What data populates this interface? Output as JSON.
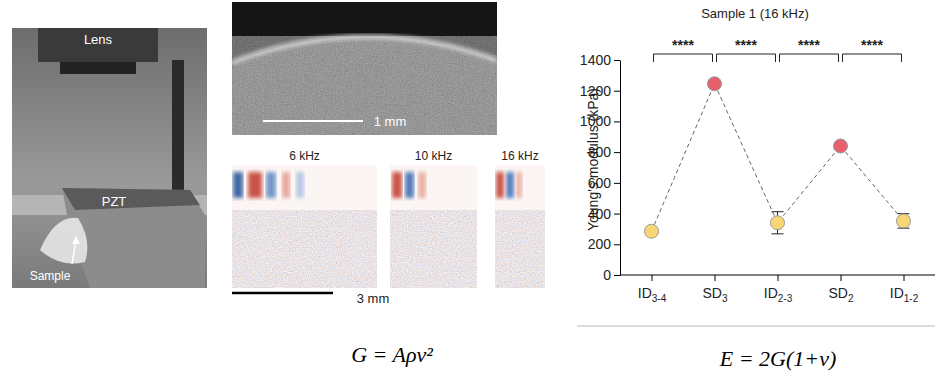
{
  "chart_data": {
    "type": "line",
    "title": "Sample 1 (16 kHz)",
    "y_label": "Young's modulus (kPa)",
    "categories": [
      "ID3-4",
      "SD3",
      "ID2-3",
      "SD2",
      "ID1-2"
    ],
    "values": [
      285,
      1245,
      340,
      840,
      352
    ],
    "errors": [
      20,
      20,
      72,
      12,
      47
    ],
    "colors": [
      "#f7d774",
      "#e8606e",
      "#f7d774",
      "#e8606e",
      "#f7d774"
    ],
    "marker": "circle",
    "line_style": "dashed",
    "ylim": [
      0,
      1400
    ],
    "yticks": [
      0,
      200,
      400,
      600,
      800,
      1000,
      1200,
      1400
    ],
    "annotations": [
      "****",
      "****",
      "****",
      "****"
    ]
  },
  "photo": {
    "labels": [
      "Lens",
      "PZT",
      "Sample"
    ]
  },
  "oct": {
    "scale_bar": "1 mm"
  },
  "waves": {
    "labels": [
      "6 kHz",
      "10 kHz",
      "16 kHz"
    ],
    "scale_bar": "3 mm"
  },
  "equations": [
    "G = Aρv²",
    "E = 2G(1+ν)"
  ]
}
